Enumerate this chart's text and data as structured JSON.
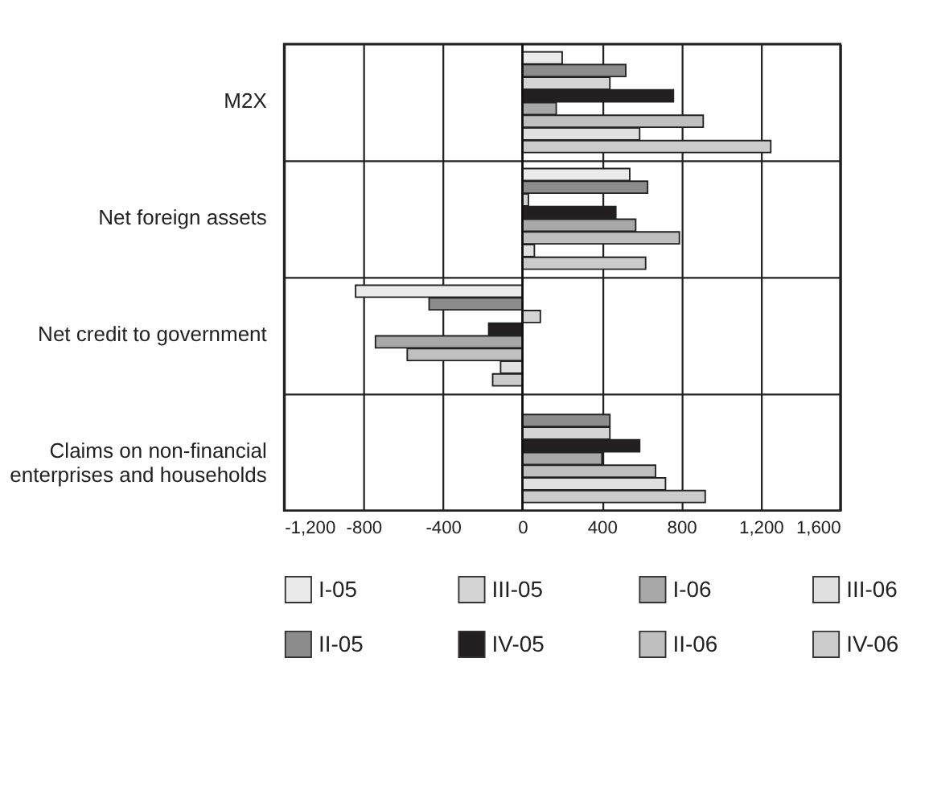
{
  "chart_data": {
    "type": "bar",
    "orientation": "horizontal",
    "categories": [
      "M2X",
      "Net foreign assets",
      "Net credit to government",
      "Claims on non-financial enterprises and households"
    ],
    "series": [
      {
        "name": "I-05",
        "color": "#eaeaea",
        "values": [
          200,
          540,
          -840,
          null
        ]
      },
      {
        "name": "II-05",
        "color": "#8c8c8c",
        "values": [
          520,
          630,
          -470,
          440
        ]
      },
      {
        "name": "III-05",
        "color": "#d4d4d4",
        "values": [
          440,
          30,
          90,
          440
        ]
      },
      {
        "name": "IV-05",
        "color": "#231f20",
        "values": [
          760,
          470,
          -170,
          590
        ]
      },
      {
        "name": "I-06",
        "color": "#a8a8a8",
        "values": [
          170,
          570,
          -740,
          400
        ]
      },
      {
        "name": "II-06",
        "color": "#bfbfbf",
        "values": [
          910,
          790,
          -580,
          670
        ]
      },
      {
        "name": "III-06",
        "color": "#e0e0e0",
        "values": [
          590,
          60,
          -110,
          720
        ]
      },
      {
        "name": "IV-06",
        "color": "#cbcbcb",
        "values": [
          1250,
          620,
          -150,
          920
        ]
      }
    ],
    "xlim": [
      -1200,
      1600
    ],
    "xticks": [
      {
        "value": -1200,
        "label": "-1,200"
      },
      -800,
      -400,
      0,
      400,
      800,
      {
        "value": 1200,
        "label": "1,200"
      },
      {
        "value": 1600,
        "label": "1,600"
      }
    ],
    "grid": true,
    "legend": "bottom"
  }
}
